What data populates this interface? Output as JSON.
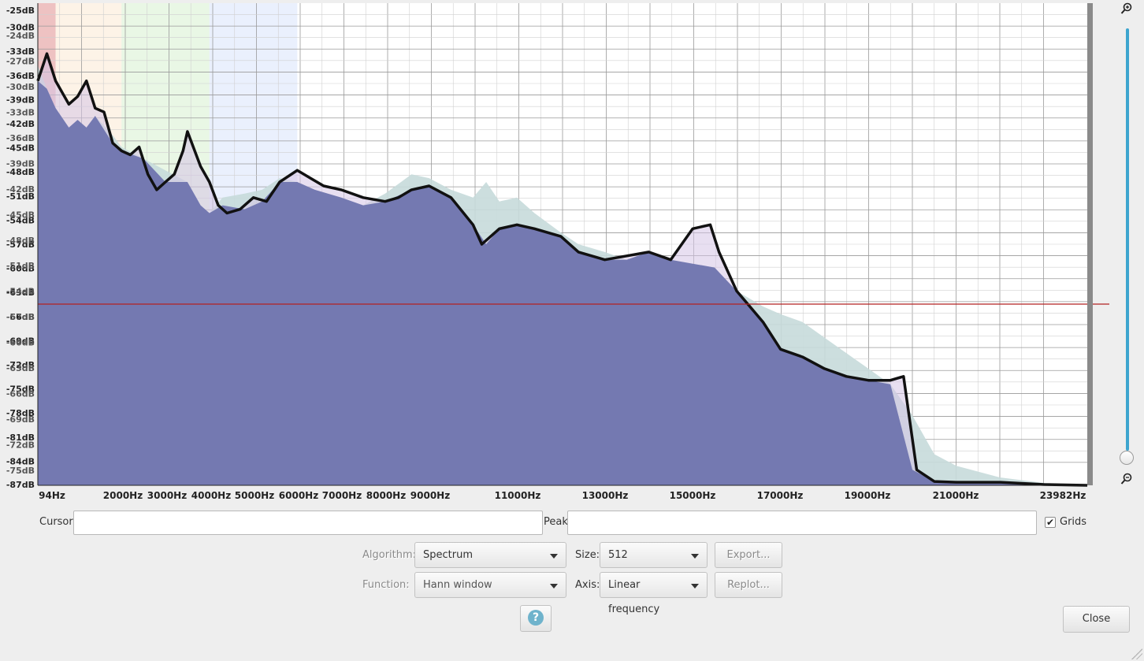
{
  "plot": {
    "y_labels": [
      "-25dB",
      "-30dB",
      "-33dB",
      "-36dB",
      "-39dB",
      "-42dB",
      "-45dB",
      "-48dB",
      "-51dB",
      "-54dB",
      "-57dB",
      "-60dB",
      "-63dB",
      "-66dB",
      "-69dB",
      "-72dB",
      "-75dB",
      "-78dB",
      "-81dB",
      "-84dB",
      "-87dB"
    ],
    "y_labels_ghost": [
      "-24dB",
      "-27dB",
      "-30dB",
      "-33dB",
      "-36dB",
      "-39dB",
      "-42dB",
      "-45dB",
      "-48dB",
      "-51dB",
      "-54dB",
      "-57dB",
      "-60dB",
      "-63dB",
      "-66dB",
      "-69dB",
      "-72dB",
      "-75dB"
    ],
    "x_labels": [
      "94Hz",
      "2000Hz",
      "3000Hz",
      "4000Hz",
      "5000Hz",
      "6000Hz",
      "7000Hz",
      "8000Hz",
      "9000Hz",
      "11000Hz",
      "13000Hz",
      "15000Hz",
      "17000Hz",
      "19000Hz",
      "21000Hz",
      "23982Hz"
    ],
    "db_top": -25,
    "db_bottom": -87,
    "hz_left": 94,
    "hz_right": 23982,
    "threshold_db": -63.7,
    "bands": [
      {
        "from_hz": 94,
        "to_hz": 500,
        "color": "#e08f8f"
      },
      {
        "from_hz": 500,
        "to_hz": 2000,
        "color": "#fbe9d3"
      },
      {
        "from_hz": 2000,
        "to_hz": 4000,
        "color": "#d7f0d0"
      },
      {
        "from_hz": 4000,
        "to_hz": 6000,
        "color": "#d9e3fb"
      }
    ],
    "spectrum_main": [
      [
        94,
        -35
      ],
      [
        300,
        -31.5
      ],
      [
        500,
        -35
      ],
      [
        800,
        -38
      ],
      [
        1000,
        -37
      ],
      [
        1200,
        -35
      ],
      [
        1400,
        -38.5
      ],
      [
        1600,
        -39
      ],
      [
        1800,
        -43
      ],
      [
        2000,
        -44
      ],
      [
        2200,
        -44.5
      ],
      [
        2400,
        -43.5
      ],
      [
        2600,
        -47
      ],
      [
        2800,
        -49
      ],
      [
        3000,
        -48
      ],
      [
        3200,
        -47
      ],
      [
        3400,
        -44
      ],
      [
        3500,
        -41.5
      ],
      [
        3600,
        -43
      ],
      [
        3800,
        -46
      ],
      [
        4000,
        -48
      ],
      [
        4200,
        -51
      ],
      [
        4400,
        -52
      ],
      [
        4700,
        -51.5
      ],
      [
        5000,
        -50
      ],
      [
        5300,
        -50.5
      ],
      [
        5600,
        -48
      ],
      [
        6000,
        -46.5
      ],
      [
        6300,
        -47.5
      ],
      [
        6600,
        -48.5
      ],
      [
        7000,
        -49
      ],
      [
        7500,
        -50
      ],
      [
        8000,
        -50.5
      ],
      [
        8300,
        -50
      ],
      [
        8600,
        -49
      ],
      [
        9000,
        -48.5
      ],
      [
        9500,
        -50
      ],
      [
        10000,
        -53.5
      ],
      [
        10200,
        -56
      ],
      [
        10600,
        -54
      ],
      [
        11000,
        -53.5
      ],
      [
        11400,
        -54
      ],
      [
        12000,
        -55
      ],
      [
        12400,
        -57
      ],
      [
        13000,
        -58
      ],
      [
        13500,
        -57.5
      ],
      [
        14000,
        -57
      ],
      [
        14500,
        -58
      ],
      [
        15000,
        -54
      ],
      [
        15400,
        -53.5
      ],
      [
        15600,
        -57
      ],
      [
        16000,
        -62
      ],
      [
        16300,
        -64
      ],
      [
        16600,
        -66
      ],
      [
        17000,
        -69.5
      ],
      [
        17500,
        -70.5
      ],
      [
        18000,
        -72
      ],
      [
        18500,
        -73
      ],
      [
        19000,
        -73.5
      ],
      [
        19500,
        -73.5
      ],
      [
        19800,
        -73
      ],
      [
        20100,
        -85
      ],
      [
        20500,
        -86.5
      ],
      [
        21000,
        -86.6
      ],
      [
        22000,
        -86.6
      ],
      [
        23000,
        -86.9
      ],
      [
        23982,
        -87
      ]
    ],
    "spectrum_ghost": [
      [
        94,
        -33
      ],
      [
        300,
        -36
      ],
      [
        500,
        -38.5
      ],
      [
        800,
        -41
      ],
      [
        1000,
        -40
      ],
      [
        1200,
        -41
      ],
      [
        1400,
        -39.5
      ],
      [
        1800,
        -42
      ],
      [
        2000,
        -43.5
      ],
      [
        2500,
        -45
      ],
      [
        3000,
        -46.5
      ],
      [
        3500,
        -48
      ],
      [
        3800,
        -51
      ],
      [
        4000,
        -52
      ],
      [
        4300,
        -50
      ],
      [
        4800,
        -49.5
      ],
      [
        5200,
        -49
      ],
      [
        5600,
        -47.5
      ],
      [
        6000,
        -48
      ],
      [
        6400,
        -49
      ],
      [
        7000,
        -50
      ],
      [
        7500,
        -51
      ],
      [
        8000,
        -49.5
      ],
      [
        8600,
        -47
      ],
      [
        9000,
        -47.5
      ],
      [
        9500,
        -49
      ],
      [
        10000,
        -50
      ],
      [
        10300,
        -48
      ],
      [
        10600,
        -50.5
      ],
      [
        11000,
        -50
      ],
      [
        11400,
        -52
      ],
      [
        12000,
        -54.5
      ],
      [
        12400,
        -56
      ],
      [
        13000,
        -57
      ],
      [
        13500,
        -58
      ],
      [
        14000,
        -57
      ],
      [
        14500,
        -58
      ],
      [
        15000,
        -58.5
      ],
      [
        15500,
        -59
      ],
      [
        16000,
        -62
      ],
      [
        16300,
        -63
      ],
      [
        16600,
        -64
      ],
      [
        17000,
        -65
      ],
      [
        17500,
        -66
      ],
      [
        18000,
        -68
      ],
      [
        18500,
        -70
      ],
      [
        19000,
        -72
      ],
      [
        19500,
        -74
      ],
      [
        20000,
        -78
      ],
      [
        20500,
        -83
      ],
      [
        21000,
        -84.5
      ],
      [
        22000,
        -86
      ],
      [
        23000,
        -86.7
      ],
      [
        23982,
        -87
      ]
    ],
    "colors": {
      "fill_main": "#7479b1",
      "fill_ghost": "#c6dada",
      "line": "#111111",
      "threshold": "#b22222",
      "grid": "#9a9a9a"
    }
  },
  "cursor": {
    "label": "Cursor:",
    "value": ""
  },
  "peak": {
    "label": "Peak:",
    "value": ""
  },
  "grids": {
    "label": "Grids",
    "checked": true,
    "mark": "✔"
  },
  "algorithm": {
    "label": "Algorithm:",
    "value": "Spectrum"
  },
  "size": {
    "label": "Size:",
    "value": "512"
  },
  "export": {
    "label": "Export..."
  },
  "function": {
    "label": "Function:",
    "value": "Hann window"
  },
  "axis": {
    "label": "Axis:",
    "value": "Linear frequency"
  },
  "replot": {
    "label": "Replot..."
  },
  "help": {
    "label": "?"
  },
  "close": {
    "label": "Close"
  },
  "icons": {
    "zoom_in": "zoom-in-icon",
    "zoom_out": "zoom-out-icon"
  }
}
